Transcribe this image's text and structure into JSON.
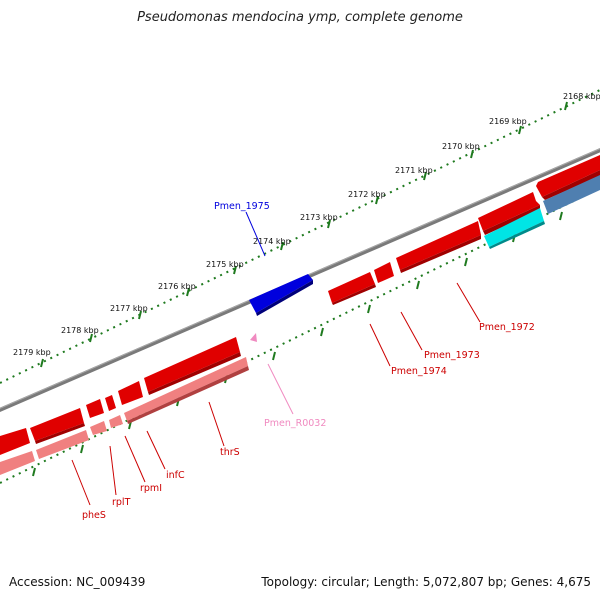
{
  "title": "Pseudomonas mendocina ymp, complete genome",
  "footer": {
    "accession": "Accession: NC_009439",
    "summary": "Topology: circular; Length: 5,072,807 bp; Genes: 4,675"
  },
  "colors": {
    "backbone": "#808080",
    "ticks": "#1f7a1f",
    "forward_gene": "#e00000",
    "reverse_gene": "#f08080",
    "blue_gene": "#0000dd",
    "cyan_gene": "#00e5e5",
    "steel_gene": "#4f7fb0",
    "rrna_label": "#f08ac0"
  },
  "ticks": [
    "2168 kbp",
    "2169 kbp",
    "2170 kbp",
    "2171 kbp",
    "2172 kbp",
    "2173 kbp",
    "2174 kbp",
    "2175 kbp",
    "2176 kbp",
    "2177 kbp",
    "2178 kbp",
    "2179 kbp"
  ],
  "labels": {
    "pmen_1975": "Pmen_1975",
    "pmen_1972": "Pmen_1972",
    "pmen_1973": "Pmen_1973",
    "pmen_1974": "Pmen_1974",
    "pmen_r0032": "Pmen_R0032",
    "thrS": "thrS",
    "infC": "infC",
    "rpmI": "rpmI",
    "rplT": "rplT",
    "pheS": "pheS"
  }
}
